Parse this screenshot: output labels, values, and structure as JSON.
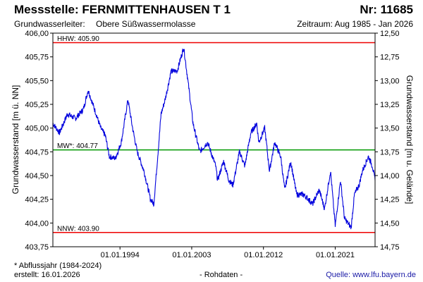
{
  "header": {
    "title": "Messstelle: FERNMITTENHAUSEN T 1",
    "number": "Nr: 11685",
    "aquifer_label": "Grundwasserleiter:",
    "aquifer_value": "Obere Süßwassermolasse",
    "period": "Zeitraum: Aug 1985 - Jan 2026"
  },
  "footer": {
    "note": "* Abflussjahr (1984-2024)",
    "created": "erstellt:  16.01.2026",
    "rawdata": "- Rohdaten -",
    "source": "Quelle:  www.lfu.bayern.de"
  },
  "colors": {
    "series": "#0000dd",
    "hhw": "#ee0000",
    "nnw": "#ee0000",
    "mw": "#009900"
  },
  "chart_data": {
    "type": "line",
    "xlabel": "",
    "ylabel": "Grundwasserstand [m ü. NN]",
    "ylabel_right": "Grundwasserstand [m u. Gelände]",
    "ylim": [
      403.75,
      406.0
    ],
    "ylim_right": [
      12.5,
      14.75
    ],
    "xlim": [
      "1985-08",
      "2026-01"
    ],
    "yticks": [
      "406,00",
      "405,75",
      "405,50",
      "405,25",
      "405,00",
      "404,75",
      "404,50",
      "404,25",
      "404,00",
      "403,75"
    ],
    "yticks_right": [
      "12,50",
      "12,75",
      "13,00",
      "13,25",
      "13,50",
      "13,75",
      "14,00",
      "14,25",
      "14,50",
      "14,75"
    ],
    "xticks": [
      "01.01.1994",
      "01.01.2003",
      "01.01.2012",
      "01.01.2021"
    ],
    "reference_lines": [
      {
        "label": "HHW: 405.90",
        "value": 405.9
      },
      {
        "label": "MW*: 404.77",
        "value": 404.77
      },
      {
        "label": "NNW: 403.90",
        "value": 403.9
      }
    ],
    "series": [
      {
        "x": [
          "1985-08",
          "1986-06",
          "1987-06",
          "1988-06",
          "1989-06",
          "1990-01",
          "1991-01",
          "1991-08",
          "1992-03",
          "1992-09",
          "1993-06",
          "1994-03",
          "1995-01",
          "1995-08",
          "1996-03",
          "1997-01",
          "1997-06",
          "1997-11",
          "1998-04",
          "1999-03",
          "1999-09",
          "2000-06",
          "2001-03",
          "2002-01",
          "2002-09",
          "2003-03",
          "2004-01",
          "2005-01",
          "2006-01",
          "2006-04",
          "2007-01",
          "2007-09",
          "2008-03",
          "2009-01",
          "2009-09",
          "2010-06",
          "2011-03",
          "2011-06",
          "2012-03",
          "2012-10",
          "2013-06",
          "2014-03",
          "2014-09",
          "2015-06",
          "2016-03",
          "2017-01",
          "2017-09",
          "2018-03",
          "2019-01",
          "2019-09",
          "2020-06",
          "2021-01",
          "2021-09",
          "2022-03",
          "2023-01",
          "2023-06",
          "2024-01",
          "2024-06",
          "2025-03",
          "2025-09",
          "2026-01"
        ],
        "values": [
          405.05,
          404.95,
          405.15,
          405.1,
          405.2,
          405.4,
          405.15,
          405.0,
          404.92,
          404.7,
          404.68,
          404.85,
          405.3,
          405.0,
          404.75,
          404.55,
          404.4,
          404.25,
          404.2,
          405.15,
          405.3,
          405.6,
          405.6,
          405.85,
          405.4,
          405.05,
          404.75,
          404.85,
          404.6,
          404.45,
          404.65,
          404.45,
          404.4,
          404.75,
          404.6,
          404.95,
          405.05,
          404.85,
          405.0,
          404.55,
          404.85,
          404.7,
          404.35,
          404.65,
          404.3,
          404.3,
          404.25,
          404.2,
          404.35,
          404.15,
          404.55,
          403.97,
          404.45,
          404.05,
          403.95,
          404.3,
          404.4,
          404.55,
          404.7,
          404.6,
          404.45
        ]
      }
    ]
  }
}
